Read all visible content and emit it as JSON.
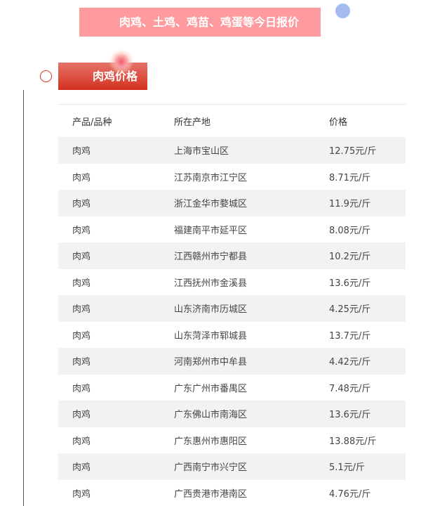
{
  "banner": {
    "title": "肉鸡、土鸡、鸡苗、鸡蛋等今日报价"
  },
  "section": {
    "title": "肉鸡价格"
  },
  "table": {
    "headers": [
      "产品/品种",
      "所在产地",
      "价格"
    ],
    "rows": [
      [
        "肉鸡",
        "上海市宝山区",
        "12.75元/斤"
      ],
      [
        "肉鸡",
        "江苏南京市江宁区",
        "8.71元/斤"
      ],
      [
        "肉鸡",
        "浙江金华市婺城区",
        "11.9元/斤"
      ],
      [
        "肉鸡",
        "福建南平市延平区",
        "8.08元/斤"
      ],
      [
        "肉鸡",
        "江西赣州市宁都县",
        "10.2元/斤"
      ],
      [
        "肉鸡",
        "江西抚州市金溪县",
        "13.6元/斤"
      ],
      [
        "肉鸡",
        "山东济南市历城区",
        "4.25元/斤"
      ],
      [
        "肉鸡",
        "山东菏泽市郓城县",
        "13.7元/斤"
      ],
      [
        "肉鸡",
        "河南郑州市中牟县",
        "4.42元/斤"
      ],
      [
        "肉鸡",
        "广东广州市番禺区",
        "7.48元/斤"
      ],
      [
        "肉鸡",
        "广东佛山市南海区",
        "13.6元/斤"
      ],
      [
        "肉鸡",
        "广东惠州市惠阳区",
        "13.88元/斤"
      ],
      [
        "肉鸡",
        "广西南宁市兴宁区",
        "5.1元/斤"
      ],
      [
        "肉鸡",
        "广西贵港市港南区",
        "4.76元/斤"
      ]
    ]
  }
}
